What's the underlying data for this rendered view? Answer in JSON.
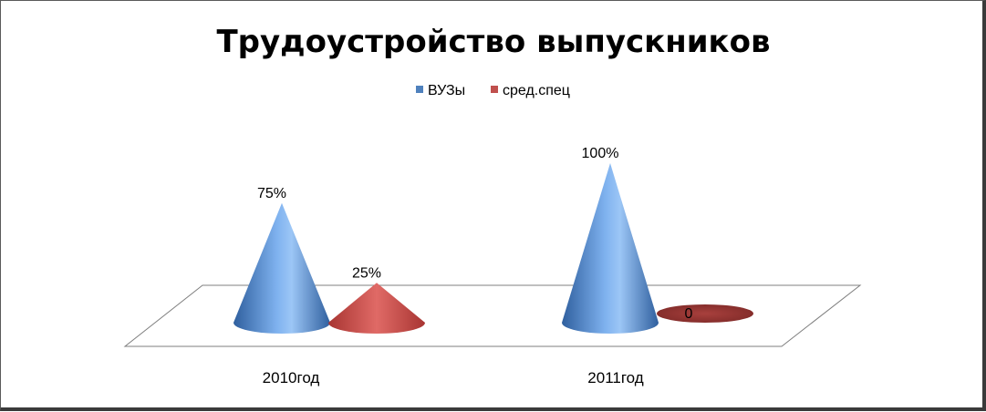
{
  "chart_data": {
    "type": "bar",
    "subtype": "3d-cone",
    "title": "Трудоустройство выпускников",
    "categories": [
      "2010год",
      "2011год"
    ],
    "series": [
      {
        "name": "ВУЗы",
        "values": [
          75,
          100
        ],
        "labels": [
          "75%",
          "100%"
        ],
        "color": "#4f81bd"
      },
      {
        "name": "сред.спец",
        "values": [
          25,
          0
        ],
        "labels": [
          "25%",
          "0"
        ],
        "color": "#c0504d"
      }
    ],
    "ylim": [
      0,
      100
    ],
    "legend_position": "top",
    "grid": false
  }
}
